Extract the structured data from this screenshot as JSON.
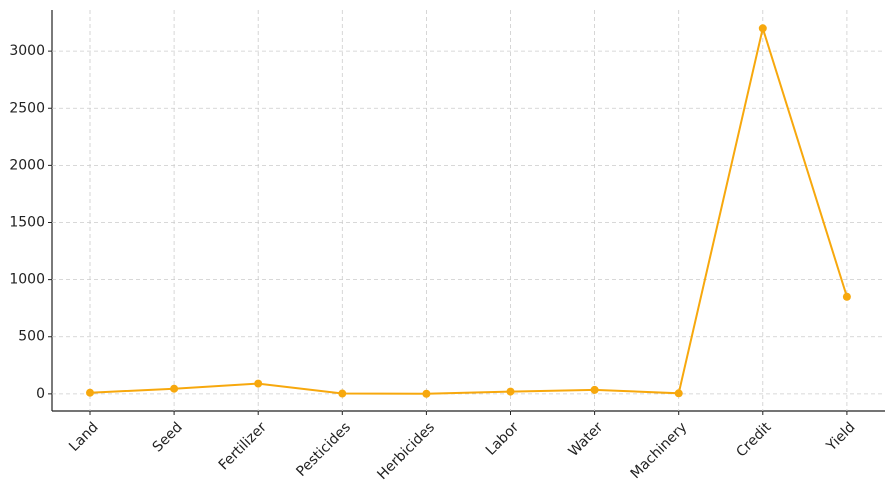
{
  "chart_data": {
    "type": "line",
    "categories": [
      "Land",
      "Seed",
      "Fertilizer",
      "Pesticides",
      "Herbicides",
      "Labor",
      "Water",
      "Machinery",
      "Credit",
      "Yield"
    ],
    "values": [
      10,
      45,
      90,
      3,
      1,
      20,
      35,
      5,
      3200,
      850
    ],
    "color": "#f7a80d",
    "ylim": [
      -150,
      3360
    ],
    "yticks": [
      0,
      500,
      1000,
      1500,
      2000,
      2500,
      3000
    ],
    "grid": true
  }
}
